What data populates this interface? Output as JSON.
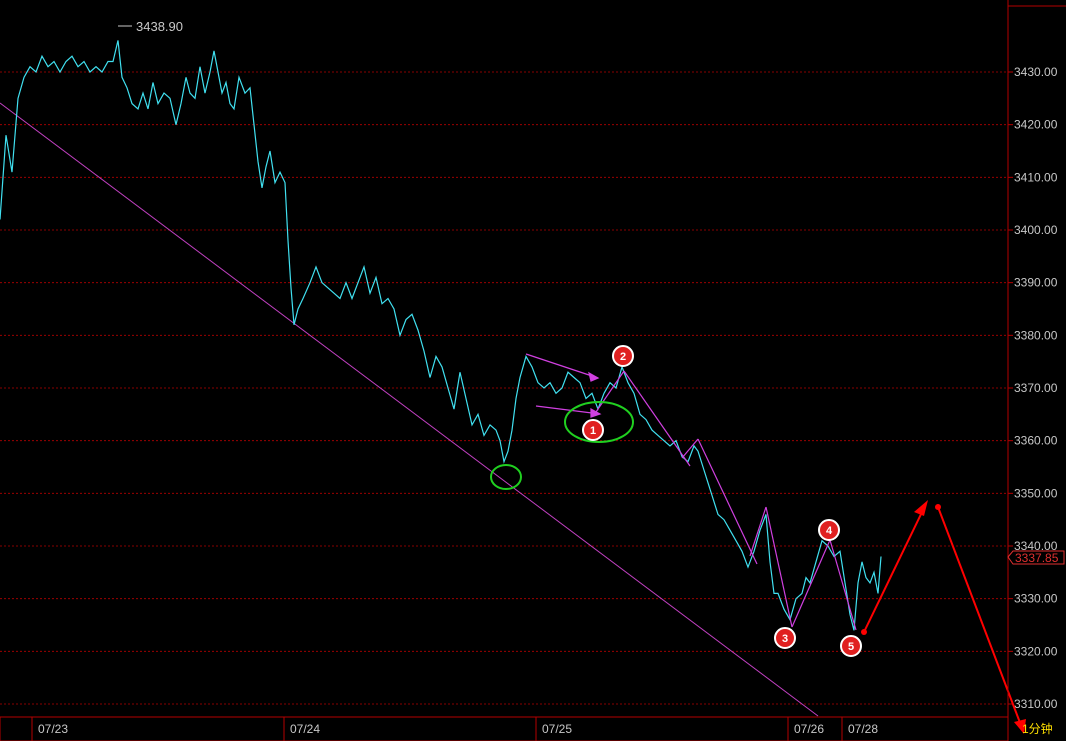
{
  "chart_data": {
    "type": "line",
    "header_value": "3438.90",
    "last_value_label": "3337.85",
    "period_label": "1分钟",
    "x_tick_labels": [
      "07/23",
      "07/24",
      "07/25",
      "07/26",
      "07/28"
    ],
    "y_tick_labels": [
      "3430.00",
      "3420.00",
      "3410.00",
      "3400.00",
      "3390.00",
      "3380.00",
      "3370.00",
      "3360.00",
      "3350.00",
      "3340.00",
      "3330.00",
      "3320.00",
      "3310.00"
    ],
    "y_ticks": [
      3430,
      3420,
      3410,
      3400,
      3390,
      3380,
      3370,
      3360,
      3350,
      3340,
      3330,
      3320,
      3310
    ],
    "ylim": [
      3307,
      3446
    ],
    "grid": "horizontal",
    "series": [
      {
        "color": "#40e0f0",
        "points": [
          [
            0,
            3402
          ],
          [
            6,
            3418
          ],
          [
            12,
            3411
          ],
          [
            18,
            3425
          ],
          [
            24,
            3429
          ],
          [
            30,
            3431
          ],
          [
            36,
            3430
          ],
          [
            42,
            3433
          ],
          [
            48,
            3431
          ],
          [
            54,
            3432
          ],
          [
            60,
            3430
          ],
          [
            66,
            3432
          ],
          [
            72,
            3433
          ],
          [
            78,
            3431
          ],
          [
            84,
            3432
          ],
          [
            90,
            3430
          ],
          [
            96,
            3431
          ],
          [
            102,
            3430
          ],
          [
            108,
            3432
          ],
          [
            113,
            3432
          ],
          [
            118,
            3436
          ],
          [
            122,
            3429
          ],
          [
            127,
            3427
          ],
          [
            132,
            3424
          ],
          [
            138,
            3423
          ],
          [
            143,
            3426
          ],
          [
            148,
            3423
          ],
          [
            153,
            3428
          ],
          [
            158,
            3424
          ],
          [
            164,
            3426
          ],
          [
            170,
            3425
          ],
          [
            176,
            3420
          ],
          [
            181,
            3424
          ],
          [
            186,
            3429
          ],
          [
            190,
            3426
          ],
          [
            195,
            3425
          ],
          [
            200,
            3431
          ],
          [
            205,
            3426
          ],
          [
            210,
            3430
          ],
          [
            214,
            3434
          ],
          [
            218,
            3430
          ],
          [
            222,
            3426
          ],
          [
            226,
            3428
          ],
          [
            230,
            3424
          ],
          [
            234,
            3423
          ],
          [
            239,
            3429
          ],
          [
            245,
            3426
          ],
          [
            250,
            3427
          ],
          [
            254,
            3420
          ],
          [
            258,
            3413
          ],
          [
            262,
            3408
          ],
          [
            266,
            3412
          ],
          [
            270,
            3415
          ],
          [
            275,
            3409
          ],
          [
            280,
            3411
          ],
          [
            285,
            3409
          ],
          [
            288,
            3398
          ],
          [
            291,
            3389
          ],
          [
            294,
            3382
          ],
          [
            298,
            3385
          ],
          [
            303,
            3387
          ],
          [
            310,
            3390
          ],
          [
            316,
            3393
          ],
          [
            322,
            3390
          ],
          [
            328,
            3389
          ],
          [
            334,
            3388
          ],
          [
            340,
            3387
          ],
          [
            346,
            3390
          ],
          [
            352,
            3387
          ],
          [
            358,
            3390
          ],
          [
            364,
            3393
          ],
          [
            370,
            3388
          ],
          [
            376,
            3391
          ],
          [
            382,
            3386
          ],
          [
            388,
            3387
          ],
          [
            394,
            3385
          ],
          [
            400,
            3380
          ],
          [
            406,
            3383
          ],
          [
            412,
            3384
          ],
          [
            418,
            3381
          ],
          [
            424,
            3377
          ],
          [
            430,
            3372
          ],
          [
            436,
            3376
          ],
          [
            442,
            3374
          ],
          [
            448,
            3370
          ],
          [
            454,
            3366
          ],
          [
            460,
            3373
          ],
          [
            466,
            3368
          ],
          [
            472,
            3363
          ],
          [
            478,
            3365
          ],
          [
            484,
            3361
          ],
          [
            490,
            3363
          ],
          [
            496,
            3362
          ],
          [
            500,
            3360
          ],
          [
            504,
            3356
          ],
          [
            508,
            3358
          ],
          [
            512,
            3362
          ],
          [
            516,
            3368
          ],
          [
            520,
            3372
          ],
          [
            526,
            3376
          ],
          [
            532,
            3374
          ],
          [
            538,
            3371
          ],
          [
            544,
            3370
          ],
          [
            550,
            3371
          ],
          [
            556,
            3369
          ],
          [
            562,
            3370
          ],
          [
            568,
            3373
          ],
          [
            574,
            3372
          ],
          [
            580,
            3371
          ],
          [
            586,
            3368
          ],
          [
            592,
            3369
          ],
          [
            598,
            3366
          ],
          [
            604,
            3369
          ],
          [
            610,
            3371
          ],
          [
            616,
            3370
          ],
          [
            622,
            3374
          ],
          [
            628,
            3371
          ],
          [
            634,
            3369
          ],
          [
            640,
            3365
          ],
          [
            646,
            3364
          ],
          [
            652,
            3362
          ],
          [
            658,
            3361
          ],
          [
            664,
            3360
          ],
          [
            670,
            3359
          ],
          [
            676,
            3360
          ],
          [
            682,
            3357
          ],
          [
            688,
            3356
          ],
          [
            694,
            3359
          ],
          [
            698,
            3358
          ],
          [
            703,
            3355
          ],
          [
            708,
            3352
          ],
          [
            713,
            3349
          ],
          [
            718,
            3346
          ],
          [
            724,
            3345
          ],
          [
            730,
            3343
          ],
          [
            736,
            3341
          ],
          [
            742,
            3339
          ],
          [
            748,
            3336
          ],
          [
            754,
            3339
          ],
          [
            760,
            3343
          ],
          [
            766,
            3346
          ],
          [
            770,
            3337
          ],
          [
            774,
            3331
          ],
          [
            778,
            3331
          ],
          [
            784,
            3328
          ],
          [
            790,
            3326
          ],
          [
            796,
            3330
          ],
          [
            802,
            3331
          ],
          [
            806,
            3334
          ],
          [
            810,
            3333
          ],
          [
            816,
            3337
          ],
          [
            822,
            3341
          ],
          [
            828,
            3340
          ],
          [
            834,
            3338
          ],
          [
            840,
            3339
          ],
          [
            845,
            3333
          ],
          [
            850,
            3327
          ],
          [
            854,
            3324
          ],
          [
            858,
            3333
          ],
          [
            862,
            3337
          ],
          [
            866,
            3334
          ],
          [
            870,
            3333
          ],
          [
            874,
            3335
          ],
          [
            878,
            3331
          ],
          [
            881,
            3338
          ]
        ]
      }
    ]
  },
  "annotations": {
    "numbers": [
      "1",
      "2",
      "3",
      "4",
      "5"
    ]
  },
  "colors": {
    "background": "#000000",
    "price_line": "#40e0f0",
    "grid": "#b40000",
    "trendline": "#c040c0",
    "marker": "#e02020",
    "circle": "#20d020",
    "forecast": "#ff0000"
  }
}
